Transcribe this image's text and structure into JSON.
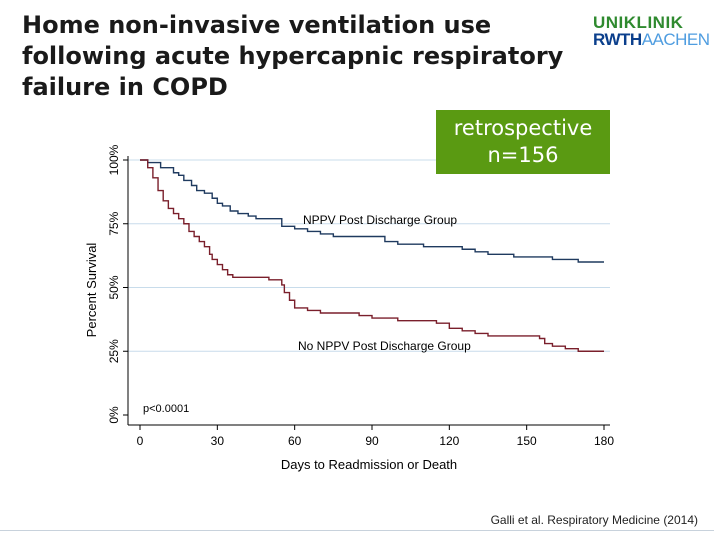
{
  "slide": {
    "title": "Home non-invasive ventilation use following acute hypercapnic respiratory failure in COPD",
    "logo": {
      "line1": "UNIKLINIK",
      "line2a": "RWTH",
      "line2b": "AACHEN"
    },
    "badge": {
      "line1": "retrospective",
      "line2": "n=156"
    },
    "citation": "Galli et al. Respiratory Medicine (2014)",
    "colors": {
      "badge": "#5a9a12",
      "npp_group": "#1f3a5f",
      "no_npp_group": "#7a1f2b",
      "grid": "#c8dceb"
    }
  },
  "chart_data": {
    "type": "line",
    "subtype": "kaplan-meier step",
    "xlabel": "Days to Readmission or Death",
    "ylabel": "Percent Survival",
    "xlim": [
      0,
      180
    ],
    "ylim": [
      0,
      100
    ],
    "x_ticks": [
      0,
      30,
      60,
      90,
      120,
      150,
      180
    ],
    "x_tick_labels": [
      "0",
      "30",
      "60",
      "90",
      "120",
      "150",
      "180"
    ],
    "y_ticks": [
      0,
      25,
      50,
      75,
      100
    ],
    "y_tick_labels": [
      "0%",
      "25%",
      "50%",
      "75%",
      "100%"
    ],
    "grid": "horizontal",
    "annotation": "p<0.0001",
    "series": [
      {
        "name": "NPPV Post Discharge Group",
        "color": "#1f3a5f",
        "x": [
          0,
          3,
          8,
          13,
          15,
          17,
          20,
          22,
          25,
          28,
          30,
          32,
          35,
          38,
          42,
          45,
          55,
          60,
          65,
          70,
          75,
          80,
          90,
          95,
          100,
          105,
          110,
          115,
          120,
          125,
          130,
          135,
          140,
          145,
          150,
          155,
          160,
          165,
          170,
          175,
          180
        ],
        "y": [
          100,
          99,
          97,
          95,
          94,
          92,
          90,
          88,
          87,
          85,
          83,
          82,
          80,
          79,
          78,
          77,
          74,
          73,
          72,
          71,
          70,
          70,
          70,
          68,
          67,
          67,
          66,
          66,
          66,
          65,
          64,
          63,
          63,
          62,
          62,
          62,
          61,
          61,
          60,
          60,
          60
        ]
      },
      {
        "name": "No NPPV Post Discharge Group",
        "color": "#7a1f2b",
        "x": [
          0,
          3,
          5,
          7,
          9,
          11,
          13,
          15,
          17,
          19,
          21,
          23,
          25,
          27,
          28,
          30,
          32,
          34,
          36,
          40,
          45,
          50,
          55,
          56,
          58,
          60,
          65,
          70,
          75,
          80,
          85,
          90,
          95,
          100,
          105,
          110,
          115,
          120,
          125,
          130,
          135,
          140,
          145,
          150,
          155,
          157,
          160,
          165,
          170,
          175,
          180
        ],
        "y": [
          100,
          97,
          93,
          88,
          84,
          81,
          79,
          77,
          75,
          72,
          70,
          68,
          66,
          63,
          61,
          59,
          57,
          55,
          54,
          54,
          54,
          53,
          51,
          48,
          45,
          42,
          41,
          40,
          40,
          40,
          39,
          38,
          38,
          37,
          37,
          37,
          36,
          34,
          33,
          32,
          31,
          31,
          31,
          31,
          30,
          28,
          27,
          26,
          25,
          25,
          25
        ]
      }
    ]
  }
}
